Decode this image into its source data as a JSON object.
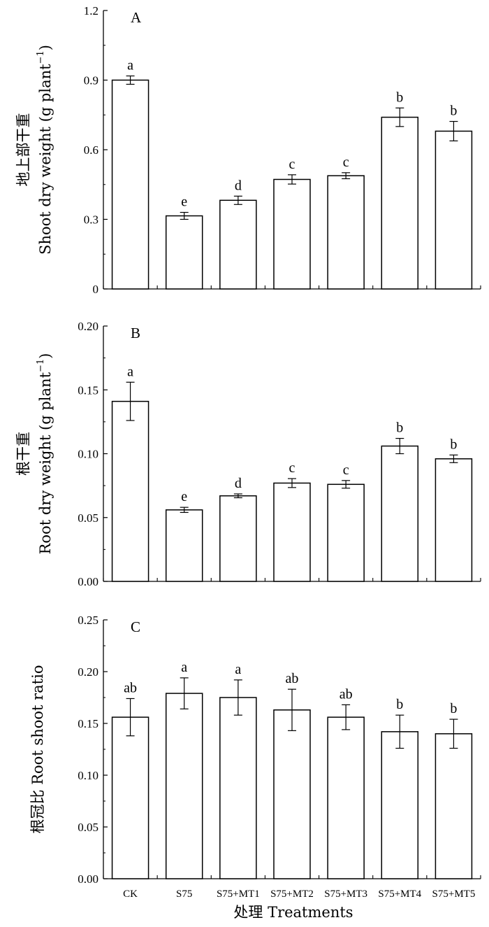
{
  "chart_data": [
    {
      "id": "A",
      "type": "bar",
      "panel_label": "A",
      "ylabel_cn": "地上部干重",
      "ylabel_en": "Shoot dry weight (g plant",
      "ylabel_sup": "−1",
      "ylabel_close": ")",
      "ylim": [
        0,
        1.2
      ],
      "yticks": [
        0,
        0.3,
        0.6,
        0.9,
        1.2
      ],
      "ytick_labels": [
        "0",
        "0.3",
        "0.6",
        "0.9",
        "1.2"
      ],
      "categories": [
        "CK",
        "S75",
        "S75+MT1",
        "S75+MT2",
        "S75+MT3",
        "S75+MT4",
        "S75+MT5"
      ],
      "values": [
        0.9,
        0.315,
        0.382,
        0.472,
        0.488,
        0.74,
        0.68
      ],
      "errors": [
        0.018,
        0.015,
        0.018,
        0.02,
        0.013,
        0.04,
        0.042
      ],
      "letters": [
        "a",
        "e",
        "d",
        "c",
        "c",
        "b",
        "b"
      ]
    },
    {
      "id": "B",
      "type": "bar",
      "panel_label": "B",
      "ylabel_cn": "根干重",
      "ylabel_en": "Root dry weight  (g plant",
      "ylabel_sup": "−1",
      "ylabel_close": ")",
      "ylim": [
        0,
        0.2
      ],
      "yticks": [
        0,
        0.05,
        0.1,
        0.15,
        0.2
      ],
      "ytick_labels": [
        "0.00",
        "0.05",
        "0.10",
        "0.15",
        "0.20"
      ],
      "categories": [
        "CK",
        "S75",
        "S75+MT1",
        "S75+MT2",
        "S75+MT3",
        "S75+MT4",
        "S75+MT5"
      ],
      "values": [
        0.141,
        0.056,
        0.067,
        0.077,
        0.076,
        0.106,
        0.096
      ],
      "errors": [
        0.015,
        0.002,
        0.0015,
        0.0035,
        0.003,
        0.006,
        0.003
      ],
      "letters": [
        "a",
        "e",
        "d",
        "c",
        "c",
        "b",
        "b"
      ]
    },
    {
      "id": "C",
      "type": "bar",
      "panel_label": "C",
      "ylabel_cn": "根冠比",
      "ylabel_en": " Root shoot ratio",
      "ylim": [
        0,
        0.25
      ],
      "yticks": [
        0,
        0.05,
        0.1,
        0.15,
        0.2,
        0.25
      ],
      "ytick_labels": [
        "0.00",
        "0.05",
        "0.10",
        "0.15",
        "0.20",
        "0.25"
      ],
      "categories": [
        "CK",
        "S75",
        "S75+MT1",
        "S75+MT2",
        "S75+MT3",
        "S75+MT4",
        "S75+MT5"
      ],
      "values": [
        0.156,
        0.179,
        0.175,
        0.163,
        0.156,
        0.142,
        0.14
      ],
      "errors": [
        0.018,
        0.015,
        0.017,
        0.02,
        0.012,
        0.016,
        0.014
      ],
      "letters": [
        "ab",
        "a",
        "a",
        "ab",
        "ab",
        "b",
        "b"
      ]
    }
  ],
  "xaxis": {
    "title_cn": "处理",
    "title_en": " Treatments",
    "tick_labels": [
      "CK",
      "S75",
      "S75+MT1",
      "S75+MT2",
      "S75+MT3",
      "S75+MT4",
      "S75+MT5"
    ]
  }
}
